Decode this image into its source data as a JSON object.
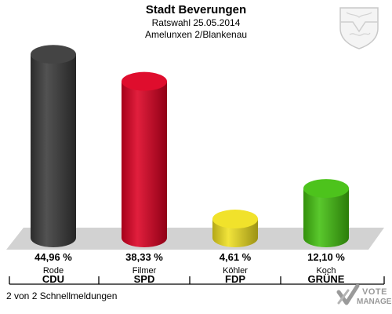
{
  "header": {
    "title": "Stadt Beverungen",
    "subtitle": "Ratswahl 25.05.2014",
    "district": "Amelunxen 2/Blankenau"
  },
  "footer": {
    "status": "2 von 2 Schnellmeldungen",
    "logo_line1": "VOTE",
    "logo_line2": "MANAGER"
  },
  "icons": {
    "crest": "coat-of-arms-icon",
    "logo": "vote-manager-logo-icon"
  },
  "chart_data": {
    "type": "bar",
    "categories": [
      "CDU",
      "SPD",
      "FDP",
      "GRÜNE"
    ],
    "candidates": [
      "Rode",
      "Filmer",
      "Köhler",
      "Koch"
    ],
    "values": [
      44.96,
      38.33,
      4.61,
      12.1
    ],
    "value_labels": [
      "44,96 %",
      "38,33 %",
      "4,61 %",
      "12,10 %"
    ],
    "colors": [
      "#3a3a3a",
      "#dd0022",
      "#f0e020",
      "#44c010"
    ],
    "ylim": [
      0,
      50
    ]
  }
}
